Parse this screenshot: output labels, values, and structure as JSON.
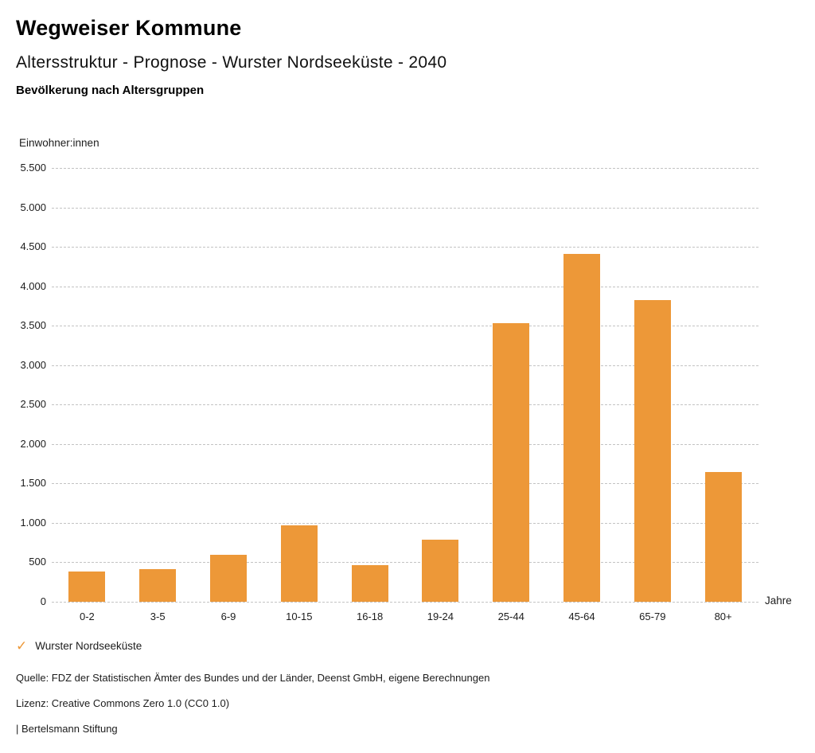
{
  "header": {
    "app_title": "Wegweiser Kommune",
    "subtitle": "Altersstruktur - Prognose - Wurster Nordseeküste - 2040",
    "chart_title": "Bevölkerung nach Altersgruppen"
  },
  "chart_data": {
    "type": "bar",
    "title": "Bevölkerung nach Altersgruppen",
    "categories": [
      "0-2",
      "3-5",
      "6-9",
      "10-15",
      "16-18",
      "19-24",
      "25-44",
      "45-64",
      "65-79",
      "80+"
    ],
    "values": [
      380,
      415,
      600,
      970,
      465,
      790,
      3535,
      4410,
      3825,
      1650
    ],
    "series_name": "Wurster Nordseeküste",
    "xlabel": "Jahre",
    "ylabel": "Einwohner:innen",
    "ylim": [
      0,
      5500
    ],
    "ytick_step": 500,
    "ytick_labels": [
      "0",
      "500",
      "1.000",
      "1.500",
      "2.000",
      "2.500",
      "3.000",
      "3.500",
      "4.000",
      "4.500",
      "5.000",
      "5.500"
    ],
    "grid": "horizontal-dashed",
    "legend_position": "bottom-left",
    "bar_color": "#ED9838"
  },
  "legend": {
    "label": "Wurster Nordseeküste",
    "check_icon": "✓",
    "check_color": "#ED9838"
  },
  "footer": {
    "source": "Quelle: FDZ der Statistischen Ämter des Bundes und der Länder, Deenst GmbH, eigene Berechnungen",
    "license": "Lizenz: Creative Commons Zero 1.0 (CC0 1.0)",
    "brand": "| Bertelsmann Stiftung"
  },
  "colors": {
    "bar": "#ED9838",
    "grid": "#c3c3c3",
    "text": "#1c1c1c"
  }
}
